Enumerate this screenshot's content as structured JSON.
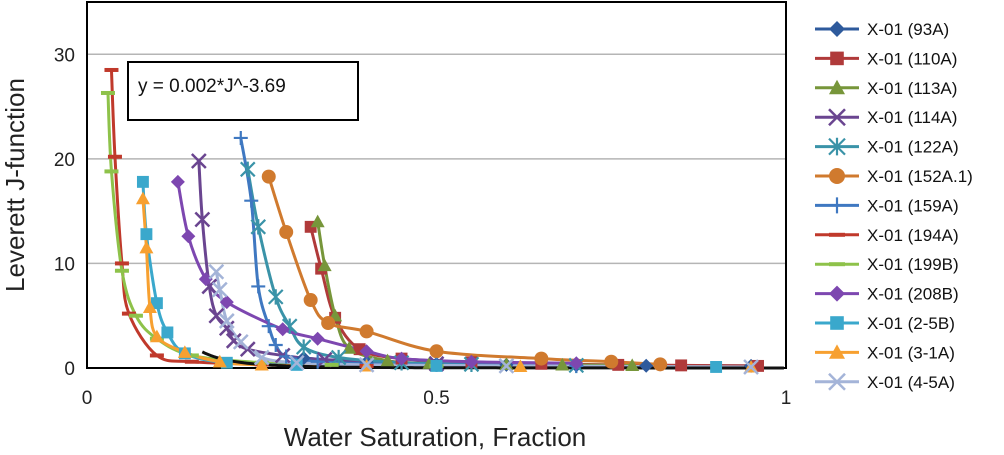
{
  "chart_data": {
    "type": "scatter",
    "title": "",
    "xlabel": "Water Saturation, Fraction",
    "ylabel": "Leverett J-function",
    "xlim": [
      0,
      1
    ],
    "ylim": [
      0,
      35
    ],
    "xticks": [
      0,
      0.5,
      1
    ],
    "xtick_labels": [
      "0",
      "0.5",
      "1"
    ],
    "yticks": [
      0,
      10,
      20,
      30
    ],
    "ytick_labels": [
      "0",
      "10",
      "20",
      "30"
    ],
    "grid": "horizontal",
    "legend_position": "right",
    "annotation": "y = 0.002*J^-3.69",
    "series": [
      {
        "name": "X-01 (93A)",
        "color": "#2e5a9c",
        "marker": "diamond",
        "points": [
          [
            0.31,
            0.95
          ],
          [
            0.4,
            0.55
          ],
          [
            0.5,
            0.4
          ],
          [
            0.6,
            0.3
          ],
          [
            0.7,
            0.25
          ],
          [
            0.8,
            0.22
          ],
          [
            0.95,
            0.2
          ]
        ]
      },
      {
        "name": "X-01 (110A)",
        "color": "#b03a3a",
        "marker": "square",
        "points": [
          [
            0.32,
            13.5
          ],
          [
            0.335,
            9.5
          ],
          [
            0.355,
            4.8
          ],
          [
            0.39,
            1.8
          ],
          [
            0.45,
            0.9
          ],
          [
            0.55,
            0.55
          ],
          [
            0.65,
            0.4
          ],
          [
            0.76,
            0.3
          ],
          [
            0.85,
            0.25
          ],
          [
            0.96,
            0.2
          ]
        ]
      },
      {
        "name": "X-01 (113A)",
        "color": "#77963a",
        "marker": "triangle",
        "points": [
          [
            0.33,
            14
          ],
          [
            0.34,
            9.8
          ],
          [
            0.355,
            5
          ],
          [
            0.375,
            1.9
          ],
          [
            0.43,
            0.7
          ],
          [
            0.49,
            0.45
          ],
          [
            0.6,
            0.35
          ],
          [
            0.68,
            0.3
          ],
          [
            0.78,
            0.25
          ]
        ]
      },
      {
        "name": "X-01 (114A)",
        "color": "#6a4590",
        "marker": "x",
        "points": [
          [
            0.16,
            19.8
          ],
          [
            0.165,
            14.2
          ],
          [
            0.175,
            7.8
          ],
          [
            0.185,
            5
          ],
          [
            0.2,
            3.8
          ],
          [
            0.21,
            2.6
          ],
          [
            0.23,
            1.8
          ],
          [
            0.28,
            1.2
          ],
          [
            0.34,
            0.8
          ],
          [
            0.5,
            0.4
          ]
        ]
      },
      {
        "name": "X-01 (122A)",
        "color": "#3a93a8",
        "marker": "asterisk",
        "points": [
          [
            0.23,
            19
          ],
          [
            0.245,
            13.5
          ],
          [
            0.27,
            6.8
          ],
          [
            0.29,
            4
          ],
          [
            0.31,
            2
          ],
          [
            0.36,
            1
          ],
          [
            0.45,
            0.5
          ],
          [
            0.55,
            0.35
          ],
          [
            0.7,
            0.25
          ]
        ]
      },
      {
        "name": "X-01 (152A.1)",
        "color": "#d07a2e",
        "marker": "circle",
        "points": [
          [
            0.26,
            18.3
          ],
          [
            0.285,
            13
          ],
          [
            0.32,
            6.5
          ],
          [
            0.345,
            4.3
          ],
          [
            0.4,
            3.5
          ],
          [
            0.5,
            1.6
          ],
          [
            0.65,
            0.9
          ],
          [
            0.75,
            0.6
          ],
          [
            0.82,
            0.35
          ]
        ]
      },
      {
        "name": "X-01 (159A)",
        "color": "#3f78c1",
        "marker": "plus",
        "points": [
          [
            0.22,
            22
          ],
          [
            0.235,
            16
          ],
          [
            0.245,
            7.8
          ],
          [
            0.26,
            4
          ],
          [
            0.27,
            2.2
          ],
          [
            0.285,
            1.1
          ],
          [
            0.33,
            0.6
          ],
          [
            0.4,
            0.4
          ],
          [
            0.5,
            0.3
          ],
          [
            0.7,
            0.2
          ]
        ]
      },
      {
        "name": "X-01 (194A)",
        "color": "#c0392b",
        "marker": "dash",
        "points": [
          [
            0.035,
            28.5
          ],
          [
            0.04,
            20.2
          ],
          [
            0.05,
            10
          ],
          [
            0.06,
            5.2
          ],
          [
            0.1,
            1.2
          ],
          [
            0.15,
            0.6
          ],
          [
            0.25,
            0.35
          ],
          [
            0.4,
            0.2
          ]
        ]
      },
      {
        "name": "X-01 (199B)",
        "color": "#8ec24a",
        "marker": "dash",
        "points": [
          [
            0.03,
            26.3
          ],
          [
            0.035,
            18.8
          ],
          [
            0.05,
            9.3
          ],
          [
            0.07,
            5
          ],
          [
            0.1,
            2.8
          ],
          [
            0.15,
            1.2
          ],
          [
            0.25,
            0.5
          ],
          [
            0.35,
            0.3
          ],
          [
            0.5,
            0.2
          ]
        ]
      },
      {
        "name": "X-01 (208B)",
        "color": "#7d47b0",
        "marker": "diamond",
        "points": [
          [
            0.13,
            17.8
          ],
          [
            0.145,
            12.6
          ],
          [
            0.17,
            8.5
          ],
          [
            0.2,
            6.3
          ],
          [
            0.28,
            3.7
          ],
          [
            0.33,
            2.8
          ],
          [
            0.4,
            1.6
          ],
          [
            0.45,
            0.9
          ],
          [
            0.55,
            0.6
          ],
          [
            0.7,
            0.45
          ]
        ]
      },
      {
        "name": "X-01 (2-5B)",
        "color": "#3aa8cc",
        "marker": "square",
        "points": [
          [
            0.08,
            17.8
          ],
          [
            0.085,
            12.8
          ],
          [
            0.1,
            6.2
          ],
          [
            0.115,
            3.4
          ],
          [
            0.14,
            1.4
          ],
          [
            0.2,
            0.5
          ],
          [
            0.3,
            0.3
          ],
          [
            0.5,
            0.2
          ],
          [
            0.9,
            0.1
          ]
        ]
      },
      {
        "name": "X-01 (3-1A)",
        "color": "#f7a030",
        "marker": "triangle",
        "points": [
          [
            0.08,
            16.2
          ],
          [
            0.085,
            11.5
          ],
          [
            0.09,
            5.8
          ],
          [
            0.1,
            3
          ],
          [
            0.14,
            1.5
          ],
          [
            0.19,
            0.6
          ],
          [
            0.25,
            0.3
          ],
          [
            0.4,
            0.2
          ],
          [
            0.62,
            0.15
          ],
          [
            0.95,
            0.1
          ]
        ]
      },
      {
        "name": "X-01 (4-5A)",
        "color": "#a4b4d8",
        "marker": "x",
        "points": [
          [
            0.185,
            9.2
          ],
          [
            0.19,
            7.5
          ],
          [
            0.2,
            4.5
          ],
          [
            0.22,
            2.5
          ],
          [
            0.25,
            1
          ],
          [
            0.3,
            0.5
          ],
          [
            0.4,
            0.3
          ],
          [
            0.6,
            0.2
          ],
          [
            0.95,
            0.1
          ]
        ]
      }
    ],
    "fit_curve": {
      "name": "fit",
      "color": "#111111",
      "a": 0.002,
      "b": -3.69,
      "x_from": 0.165,
      "x_to": 1.0
    }
  }
}
